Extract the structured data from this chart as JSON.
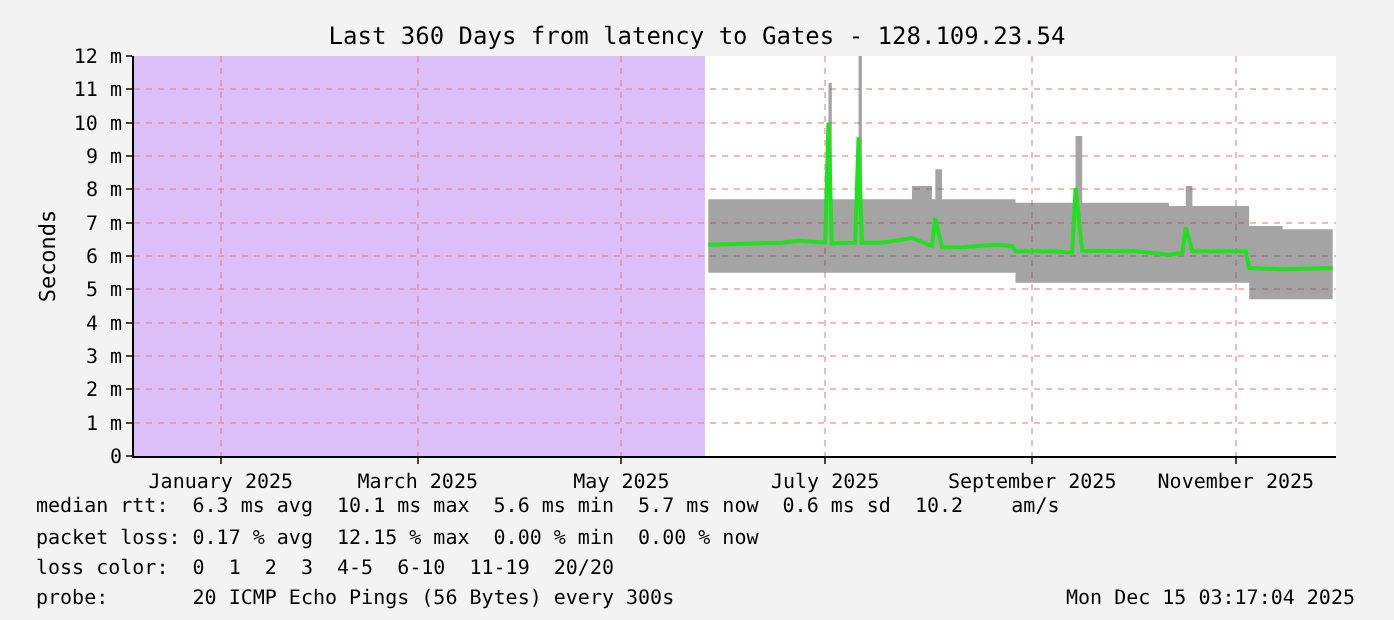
{
  "chart_data": {
    "type": "line",
    "title": "Last 360 Days from latency to Gates - 128.109.23.54",
    "ylabel": "Seconds",
    "x": [
      "2025-06-10",
      "2025-07-02",
      "2025-07-07",
      "2025-07-15",
      "2025-07-16",
      "2025-07-17",
      "2025-07-24",
      "2025-07-25",
      "2025-07-26",
      "2025-08-01",
      "2025-08-10",
      "2025-08-16",
      "2025-08-17",
      "2025-08-19",
      "2025-08-25",
      "2025-09-04",
      "2025-09-09",
      "2025-09-10",
      "2025-09-22",
      "2025-09-27",
      "2025-09-28",
      "2025-09-30",
      "2025-10-16",
      "2025-10-26",
      "2025-10-30",
      "2025-10-31",
      "2025-11-02",
      "2025-11-18",
      "2025-11-19",
      "2025-11-29",
      "2025-12-14"
    ],
    "series": [
      {
        "color": "#20e020",
        "values": [
          6.34,
          6.4,
          6.46,
          6.4,
          10.0,
          6.38,
          6.4,
          9.56,
          6.4,
          6.4,
          6.54,
          6.3,
          7.14,
          6.26,
          6.26,
          6.34,
          6.3,
          6.14,
          6.14,
          6.1,
          8.04,
          6.16,
          6.14,
          6.04,
          6.1,
          6.86,
          6.14,
          6.14,
          5.64,
          5.6,
          5.64
        ],
        "lower": [
          5.5,
          5.5,
          5.5,
          5.5,
          5.5,
          5.5,
          5.5,
          5.5,
          5.5,
          5.5,
          5.5,
          5.5,
          5.5,
          5.5,
          5.5,
          5.5,
          5.5,
          5.2,
          5.2,
          5.2,
          5.2,
          5.2,
          5.2,
          5.2,
          5.2,
          5.2,
          5.2,
          5.2,
          4.7,
          4.7,
          4.7
        ],
        "upper": [
          7.7,
          7.7,
          7.7,
          7.7,
          11.2,
          7.7,
          7.7,
          12.0,
          7.7,
          7.7,
          8.1,
          7.7,
          8.6,
          7.7,
          7.7,
          7.7,
          7.7,
          7.6,
          7.6,
          7.6,
          9.6,
          7.6,
          7.6,
          7.5,
          7.5,
          8.1,
          7.5,
          7.5,
          6.9,
          6.8,
          7.1
        ]
      }
    ],
    "xlim": [
      "2024-12-20",
      "2025-12-15"
    ],
    "xticks": [
      {
        "value": "2025-01-15",
        "label": "January 2025"
      },
      {
        "value": "2025-03-15",
        "label": "March 2025"
      },
      {
        "value": "2025-05-15",
        "label": "May 2025"
      },
      {
        "value": "2025-07-15",
        "label": "July 2025"
      },
      {
        "value": "2025-09-15",
        "label": "September 2025"
      },
      {
        "value": "2025-11-15",
        "label": "November 2025"
      }
    ],
    "ylim": [
      0,
      12
    ],
    "yticks": [
      0,
      {
        "value": 1,
        "label": "1 m"
      },
      {
        "value": 2,
        "label": "2 m"
      },
      {
        "value": 3,
        "label": "3 m"
      },
      {
        "value": 4,
        "label": "4 m"
      },
      {
        "value": 5,
        "label": "5 m"
      },
      {
        "value": 6,
        "label": "6 m"
      },
      {
        "value": 7,
        "label": "7 m"
      },
      {
        "value": 8,
        "label": "8 m"
      },
      {
        "value": 9,
        "label": "9 m"
      },
      {
        "value": 10,
        "label": "10 m"
      },
      {
        "value": 11,
        "label": "11 m"
      },
      {
        "value": 12,
        "label": "12 m"
      }
    ],
    "bands": [
      {
        "axis": "x",
        "from": "2024-12-20",
        "to": "2025-06-09",
        "color": "#dcbef8"
      }
    ],
    "grid": true,
    "marker": "none",
    "line_style": "solid",
    "annotations": [
      "median rtt:  6.3 ms avg  10.1 ms max  5.6 ms min  5.7 ms now  0.6 ms sd  10.2    am/s",
      "packet loss: 0.17 % avg  12.15 % max  0.00 % min  0.00 % now",
      "loss color:  0  1  2  3  4-5  6-10  11-19  20/20",
      "probe:       20 ICMP Echo Pings (56 Bytes) every 300s",
      "Mon Dec 15 03:17:04 2025"
    ]
  }
}
